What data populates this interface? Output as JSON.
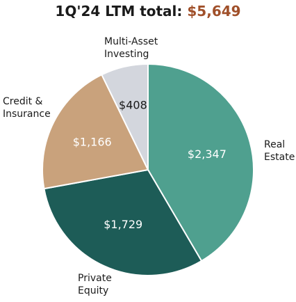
{
  "title": {
    "prefix": "1Q'24 LTM total:",
    "total": "$5,649",
    "total_color": "#a0502a"
  },
  "chart_data": {
    "type": "pie",
    "title": "1Q'24 LTM total: $5,649",
    "total": 5649,
    "slices": [
      {
        "category": "Real Estate",
        "lines": [
          "Real",
          "Estate"
        ],
        "value": 2347,
        "label": "$2,347",
        "color": "#4fa08f",
        "label_color": "#ffffff"
      },
      {
        "category": "Private Equity",
        "lines": [
          "Private",
          "Equity"
        ],
        "value": 1729,
        "label": "$1,729",
        "color": "#1d5c57",
        "label_color": "#ffffff"
      },
      {
        "category": "Credit & Insurance",
        "lines": [
          "Credit &",
          "Insurance"
        ],
        "value": 1166,
        "label": "$1,166",
        "color": "#c9a27c",
        "label_color": "#ffffff"
      },
      {
        "category": "Multi-Asset Investing",
        "lines": [
          "Multi-Asset",
          "Investing"
        ],
        "value": 408,
        "label": "$408",
        "color": "#d3d6dd",
        "label_color": "#1a1a1a"
      }
    ]
  }
}
